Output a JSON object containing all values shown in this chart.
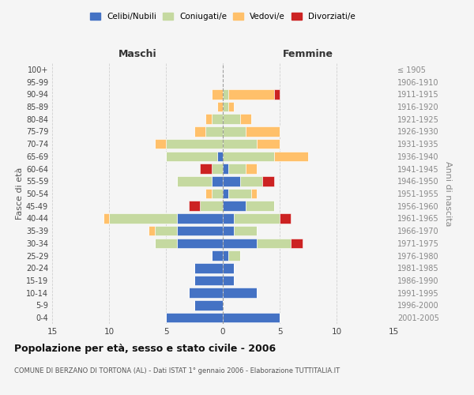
{
  "age_groups": [
    "0-4",
    "5-9",
    "10-14",
    "15-19",
    "20-24",
    "25-29",
    "30-34",
    "35-39",
    "40-44",
    "45-49",
    "50-54",
    "55-59",
    "60-64",
    "65-69",
    "70-74",
    "75-79",
    "80-84",
    "85-89",
    "90-94",
    "95-99",
    "100+"
  ],
  "birth_years": [
    "2001-2005",
    "1996-2000",
    "1991-1995",
    "1986-1990",
    "1981-1985",
    "1976-1980",
    "1971-1975",
    "1966-1970",
    "1961-1965",
    "1956-1960",
    "1951-1955",
    "1946-1950",
    "1941-1945",
    "1936-1940",
    "1931-1935",
    "1926-1930",
    "1921-1925",
    "1916-1920",
    "1911-1915",
    "1906-1910",
    "≤ 1905"
  ],
  "colors": {
    "celibi": "#4472c4",
    "coniugati": "#c5d9a0",
    "vedovi": "#ffc06a",
    "divorziati": "#cc2222"
  },
  "maschi": {
    "celibi": [
      5,
      2.5,
      3,
      2.5,
      2.5,
      1,
      4,
      4,
      4,
      0,
      0,
      1,
      0,
      0.5,
      0,
      0,
      0,
      0,
      0,
      0,
      0
    ],
    "coniugati": [
      0,
      0,
      0,
      0,
      0,
      0,
      2,
      2,
      6,
      2,
      1,
      3,
      1,
      4.5,
      5,
      1.5,
      1,
      0,
      0,
      0,
      0
    ],
    "vedovi": [
      0,
      0,
      0,
      0,
      0,
      0,
      0,
      0.5,
      0.5,
      0,
      0.5,
      0,
      0,
      0,
      1,
      1,
      0.5,
      0.5,
      1,
      0,
      0
    ],
    "divorziati": [
      0,
      0,
      0,
      0,
      0,
      0,
      0,
      0,
      0,
      1,
      0,
      0,
      1,
      0,
      0,
      0,
      0,
      0,
      0,
      0,
      0
    ]
  },
  "femmine": {
    "celibi": [
      5,
      0,
      3,
      1,
      1,
      0.5,
      3,
      1,
      1,
      2,
      0.5,
      1.5,
      0.5,
      0,
      0,
      0,
      0,
      0,
      0,
      0,
      0
    ],
    "coniugati": [
      0,
      0,
      0,
      0,
      0,
      1,
      3,
      2,
      4,
      2.5,
      2,
      2,
      1.5,
      4.5,
      3,
      2,
      1.5,
      0.5,
      0.5,
      0,
      0
    ],
    "vedovi": [
      0,
      0,
      0,
      0,
      0,
      0,
      0,
      0,
      0,
      0,
      0.5,
      0,
      1,
      3,
      2,
      3,
      1,
      0.5,
      4,
      0,
      0
    ],
    "divorziati": [
      0,
      0,
      0,
      0,
      0,
      0,
      1,
      0,
      1,
      0,
      0,
      1,
      0,
      0,
      0,
      0,
      0,
      0,
      0.5,
      0,
      0
    ]
  },
  "xlim": 15,
  "title": "Popolazione per età, sesso e stato civile - 2006",
  "subtitle": "COMUNE DI BERZANO DI TORTONA (AL) - Dati ISTAT 1° gennaio 2006 - Elaborazione TUTTITALIA.IT",
  "ylabel_left": "Fasce di età",
  "ylabel_right": "Anni di nascita",
  "xlabel_maschi": "Maschi",
  "xlabel_femmine": "Femmine",
  "legend_labels": [
    "Celibi/Nubili",
    "Coniugati/e",
    "Vedovi/e",
    "Divorziati/e"
  ],
  "background_color": "#f5f5f5",
  "grid_color": "#cccccc"
}
